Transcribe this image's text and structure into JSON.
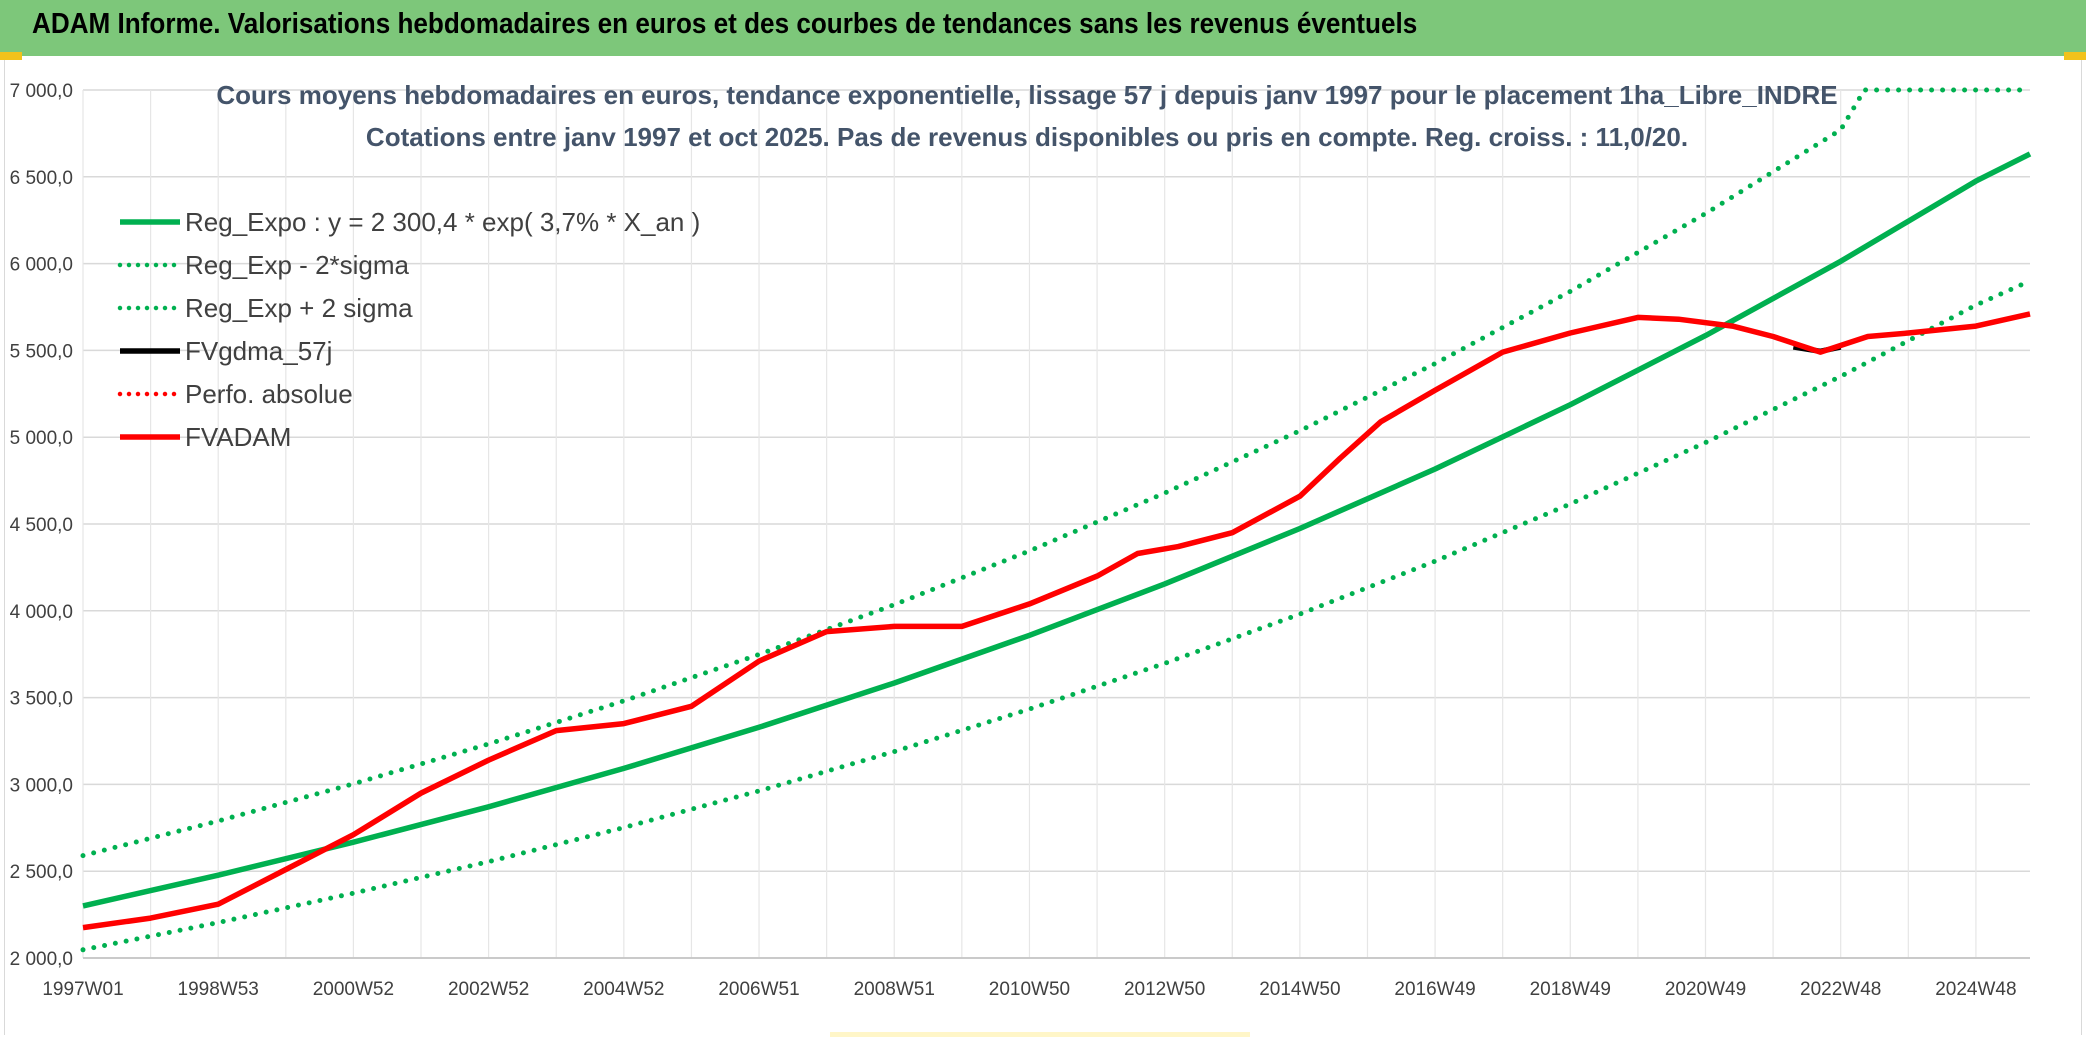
{
  "header": {
    "title": "ADAM Informe. Valorisations hebdomadaires en euros et des courbes de tendances sans les revenus éventuels"
  },
  "chart_data": {
    "type": "line",
    "title": "Cours moyens hebdomadaires en euros, tendance exponentielle, lissage 57 j depuis janv 1997 pour le placement 1ha_Libre_INDRE",
    "subtitle": "Cotations entre janv 1997 et oct 2025. Pas de revenus disponibles ou pris en compte. Reg. croiss. : 11,0/20.",
    "xlabel": "",
    "ylabel": "",
    "ylim": [
      2000,
      7000
    ],
    "xlim": [
      1997.0,
      2025.8
    ],
    "grid": true,
    "legend_position": "top-left",
    "y_ticks": [
      2000,
      2500,
      3000,
      3500,
      4000,
      4500,
      5000,
      5500,
      6000,
      6500,
      7000
    ],
    "y_tick_labels": [
      "2 000,0",
      "2 500,0",
      "3 000,0",
      "3 500,0",
      "4 000,0",
      "4 500,0",
      "5 000,0",
      "5 500,0",
      "6 000,0",
      "6 500,0",
      "7 000,0"
    ],
    "x_ticks": [
      1997.0,
      1999.0,
      2001.0,
      2003.0,
      2005.0,
      2007.0,
      2009.0,
      2011.0,
      2013.0,
      2015.0,
      2017.0,
      2019.0,
      2021.0,
      2023.0,
      2025.0
    ],
    "x_tick_labels": [
      "1997W01",
      "1998W53",
      "2000W52",
      "2002W52",
      "2004W52",
      "2006W51",
      "2008W51",
      "2010W50",
      "2012W50",
      "2014W50",
      "2016W49",
      "2018W49",
      "2020W49",
      "2022W48",
      "2024W48"
    ],
    "x_grid": [
      1997.0,
      1998.0,
      1999.0,
      2000.0,
      2001.0,
      2002.0,
      2003.0,
      2004.0,
      2005.0,
      2006.0,
      2007.0,
      2008.0,
      2009.0,
      2010.0,
      2011.0,
      2012.0,
      2013.0,
      2014.0,
      2015.0,
      2016.0,
      2017.0,
      2018.0,
      2019.0,
      2020.0,
      2021.0,
      2022.0,
      2023.0,
      2024.0,
      2025.0
    ],
    "series": [
      {
        "name": "Reg_Expo : y = 2 300,4 * exp( 3,7% *  X_an )",
        "color": "#00b050",
        "style": "solid",
        "x": [
          1997.0,
          1999.0,
          2001.0,
          2003.0,
          2005.0,
          2007.0,
          2009.0,
          2011.0,
          2013.0,
          2015.0,
          2017.0,
          2019.0,
          2021.0,
          2023.0,
          2025.0,
          2025.8
        ],
        "y": [
          2300,
          2477,
          2667,
          2871,
          3092,
          3329,
          3584,
          3859,
          4155,
          4474,
          4817,
          5187,
          5585,
          6013,
          6475,
          6632
        ]
      },
      {
        "name": "Reg_Exp - 2*sigma",
        "color": "#00b050",
        "style": "dotted",
        "x": [
          1997.0,
          1999.0,
          2001.0,
          2003.0,
          2005.0,
          2007.0,
          2009.0,
          2011.0,
          2013.0,
          2015.0,
          2017.0,
          2019.0,
          2021.0,
          2023.0,
          2025.0,
          2025.8
        ],
        "y": [
          2047,
          2204,
          2373,
          2555,
          2751,
          2962,
          3189,
          3434,
          3697,
          3981,
          4286,
          4615,
          4969,
          5350,
          5761,
          5900
        ]
      },
      {
        "name": "Reg_Exp + 2 sigma",
        "color": "#00b050",
        "style": "dotted",
        "x": [
          1997.0,
          1999.0,
          2001.0,
          2003.0,
          2005.0,
          2007.0,
          2009.0,
          2011.0,
          2013.0,
          2015.0,
          2017.0,
          2019.0,
          2021.0,
          2023.0,
          2023.35,
          2025.8
        ],
        "y": [
          2590,
          2789,
          3003,
          3233,
          3481,
          3748,
          4035,
          4345,
          4678,
          5037,
          5424,
          5840,
          6288,
          6770,
          7000,
          7000
        ]
      },
      {
        "name": "FVgdma_57j",
        "color": "#000000",
        "style": "solid",
        "x": [
          2022.3,
          2022.7,
          2023.0
        ],
        "y": [
          5520,
          5495,
          5520
        ]
      },
      {
        "name": "Perfo. absolue",
        "color": "#ff0000",
        "style": "dotted",
        "x": [],
        "y": []
      },
      {
        "name": "FVADAM",
        "color": "#ff0000",
        "style": "solid",
        "x": [
          1997.0,
          1998.0,
          1999.0,
          2000.0,
          2001.0,
          2002.0,
          2003.0,
          2004.0,
          2005.0,
          2006.0,
          2007.0,
          2008.0,
          2009.0,
          2010.0,
          2011.0,
          2012.0,
          2012.6,
          2013.2,
          2014.0,
          2015.0,
          2015.6,
          2016.2,
          2017.0,
          2018.0,
          2019.0,
          2020.0,
          2020.6,
          2021.4,
          2022.0,
          2022.7,
          2023.4,
          2024.0,
          2025.0,
          2025.8
        ],
        "y": [
          2175,
          2230,
          2310,
          2510,
          2710,
          2950,
          3140,
          3310,
          3350,
          3450,
          3710,
          3880,
          3910,
          3910,
          4040,
          4200,
          4330,
          4370,
          4450,
          4660,
          4880,
          5090,
          5270,
          5490,
          5600,
          5690,
          5680,
          5640,
          5580,
          5490,
          5580,
          5600,
          5640,
          5710
        ]
      }
    ]
  }
}
